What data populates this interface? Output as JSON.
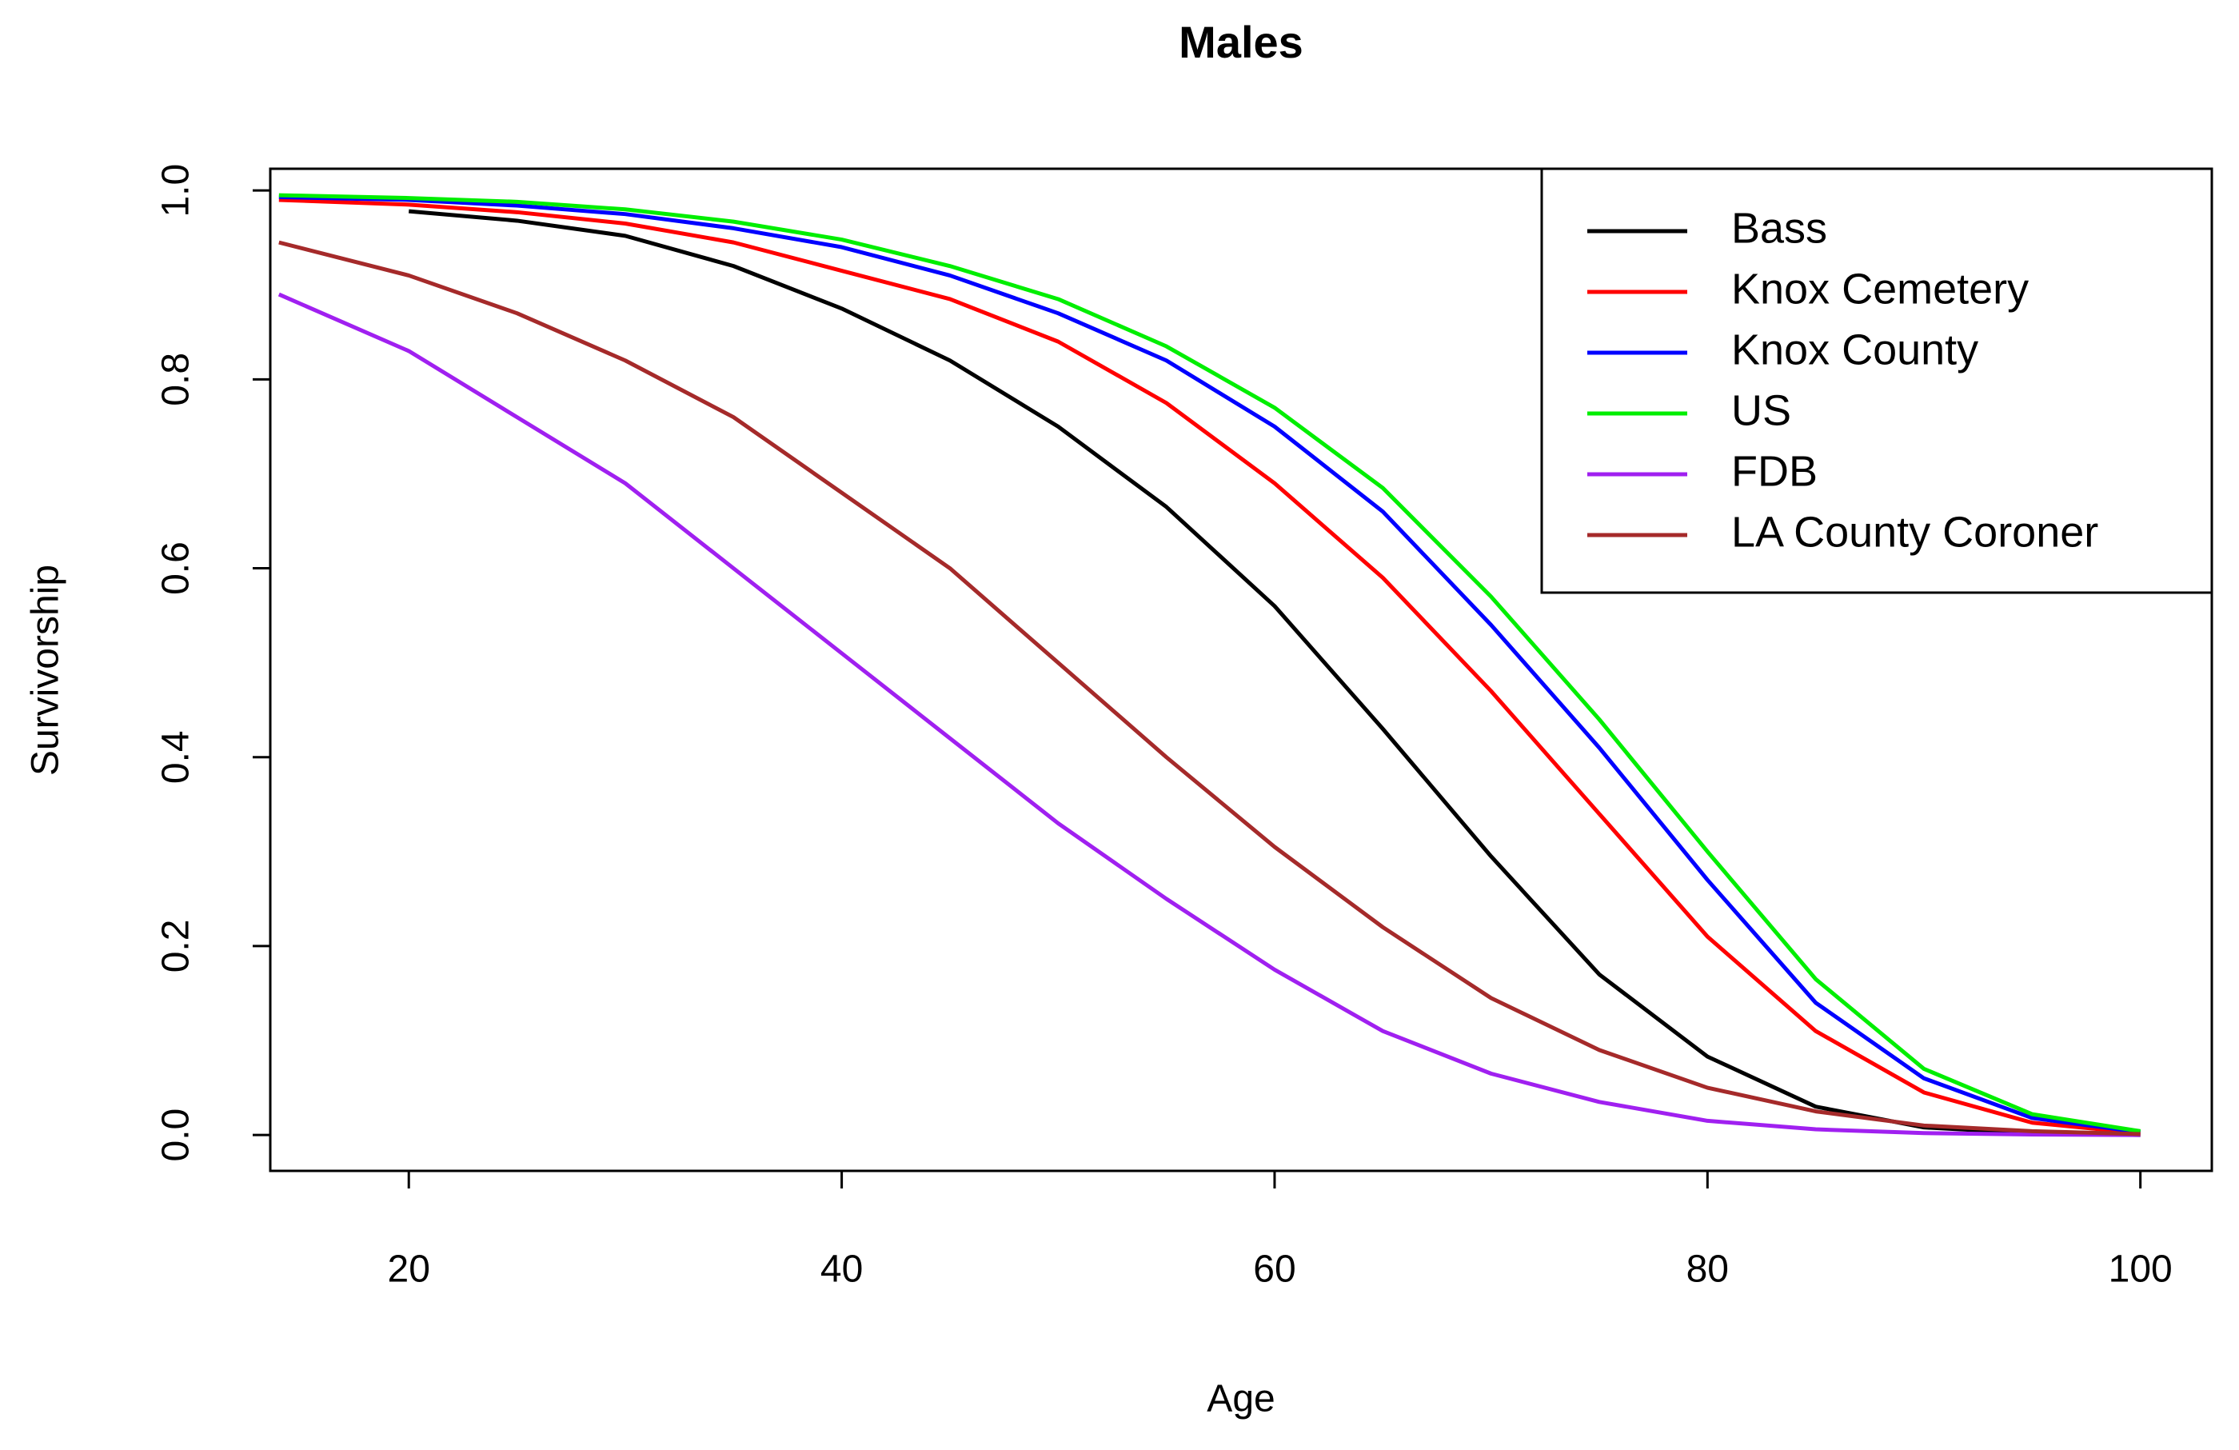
{
  "chart_data": {
    "type": "line",
    "title": "Males",
    "x_label": "Age",
    "y_label": "Survivorship",
    "x": [
      14,
      20,
      25,
      30,
      35,
      40,
      45,
      50,
      55,
      60,
      65,
      70,
      75,
      80,
      85,
      90,
      95,
      100
    ],
    "series": [
      {
        "name": "Bass",
        "color": "#000000",
        "values": [
          null,
          0.978,
          0.968,
          0.952,
          0.92,
          0.875,
          0.82,
          0.75,
          0.665,
          0.56,
          0.43,
          0.295,
          0.17,
          0.083,
          0.03,
          0.008,
          0.002,
          0
        ]
      },
      {
        "name": "Knox Cemetery",
        "color": "#ff0000",
        "values": [
          0.99,
          0.985,
          0.977,
          0.965,
          0.945,
          0.915,
          0.885,
          0.84,
          0.775,
          0.69,
          0.59,
          0.47,
          0.34,
          0.21,
          0.11,
          0.045,
          0.013,
          0.002
        ]
      },
      {
        "name": "Knox County",
        "color": "#0000ff",
        "values": [
          0.993,
          0.99,
          0.984,
          0.975,
          0.96,
          0.94,
          0.91,
          0.87,
          0.82,
          0.75,
          0.66,
          0.54,
          0.41,
          0.27,
          0.14,
          0.06,
          0.018,
          0.003
        ]
      },
      {
        "name": "US",
        "color": "#00ee00",
        "values": [
          0.995,
          0.992,
          0.988,
          0.98,
          0.967,
          0.948,
          0.92,
          0.885,
          0.835,
          0.77,
          0.685,
          0.57,
          0.44,
          0.3,
          0.165,
          0.07,
          0.022,
          0.004
        ]
      },
      {
        "name": "FDB",
        "color": "#a020f0",
        "values": [
          0.89,
          0.83,
          0.76,
          0.69,
          0.6,
          0.51,
          0.42,
          0.33,
          0.25,
          0.175,
          0.11,
          0.065,
          0.035,
          0.015,
          0.006,
          0.002,
          0.0005,
          0
        ]
      },
      {
        "name": "LA County Coroner",
        "color": "#a52a2a",
        "values": [
          0.945,
          0.91,
          0.87,
          0.82,
          0.76,
          0.68,
          0.6,
          0.5,
          0.4,
          0.305,
          0.22,
          0.145,
          0.09,
          0.05,
          0.025,
          0.01,
          0.004,
          0.001
        ]
      }
    ],
    "xlim": [
      13.6,
      103.3
    ],
    "ylim": [
      -0.038,
      1.023
    ],
    "xticks": [
      20,
      40,
      60,
      80,
      100
    ],
    "yticks": [
      {
        "value": 0,
        "label": "0.0"
      },
      {
        "value": 0.2,
        "label": "0.2"
      },
      {
        "value": 0.4,
        "label": "0.4"
      },
      {
        "value": 0.6,
        "label": "0.6"
      },
      {
        "value": 0.8,
        "label": "0.8"
      },
      {
        "value": 1,
        "label": "1.0"
      }
    ],
    "grid": false,
    "legend": "topright"
  }
}
